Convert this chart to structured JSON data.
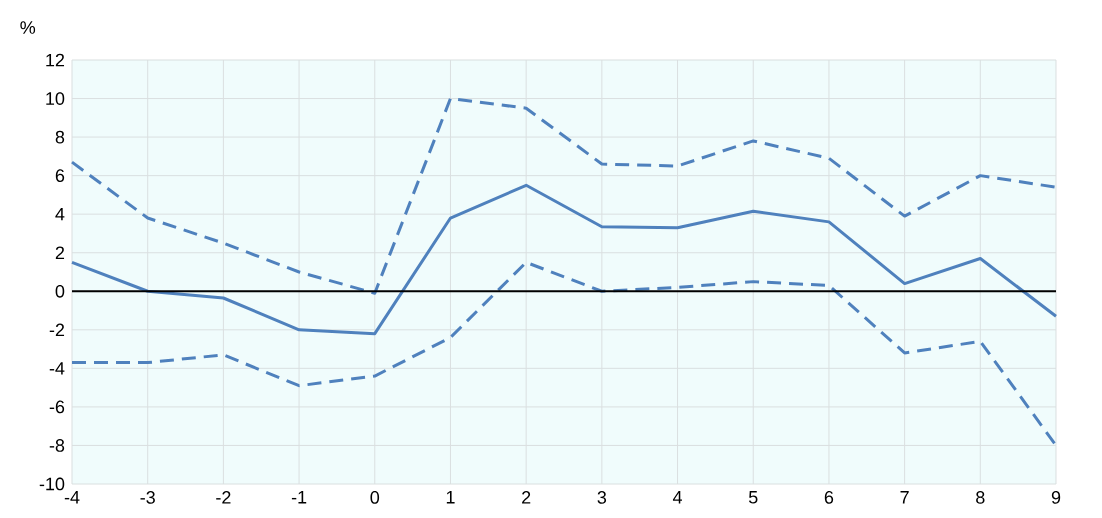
{
  "chart_data": {
    "type": "line",
    "ylabel": "%",
    "x": [
      -4,
      -3,
      -2,
      -1,
      0,
      1,
      2,
      3,
      4,
      5,
      6,
      7,
      8,
      9
    ],
    "series": [
      {
        "color": "#4f81bd",
        "line_style": "solid",
        "values": [
          1.5,
          0,
          -0.35,
          -2.0,
          -2.2,
          3.8,
          5.5,
          3.35,
          3.3,
          4.15,
          3.6,
          0.4,
          1.7,
          -1.3
        ]
      },
      {
        "color": "#4f81bd",
        "line_style": "dashed",
        "values": [
          6.7,
          3.8,
          2.5,
          1.0,
          -0.1,
          10.0,
          9.5,
          6.6,
          6.5,
          7.8,
          6.9,
          3.9,
          6.0,
          5.4
        ]
      },
      {
        "color": "#4f81bd",
        "line_style": "dashed",
        "values": [
          -3.7,
          -3.7,
          -3.3,
          -4.9,
          -4.4,
          -2.4,
          1.5,
          0,
          0.2,
          0.5,
          0.3,
          -3.2,
          -2.6,
          -8.0
        ]
      }
    ],
    "xlim": [
      -4,
      9
    ],
    "xticks": [
      -4,
      -3,
      -2,
      -1,
      0,
      1,
      2,
      3,
      4,
      5,
      6,
      7,
      8,
      9
    ],
    "ylim": [
      -10,
      12
    ],
    "yticks": [
      -10,
      -8,
      -6,
      -4,
      -2,
      0,
      2,
      4,
      6,
      8,
      10,
      12
    ],
    "grid": true,
    "marker": "none",
    "ref_lines": [
      {
        "axis": "y",
        "value": 0,
        "color": "#000000"
      }
    ]
  }
}
